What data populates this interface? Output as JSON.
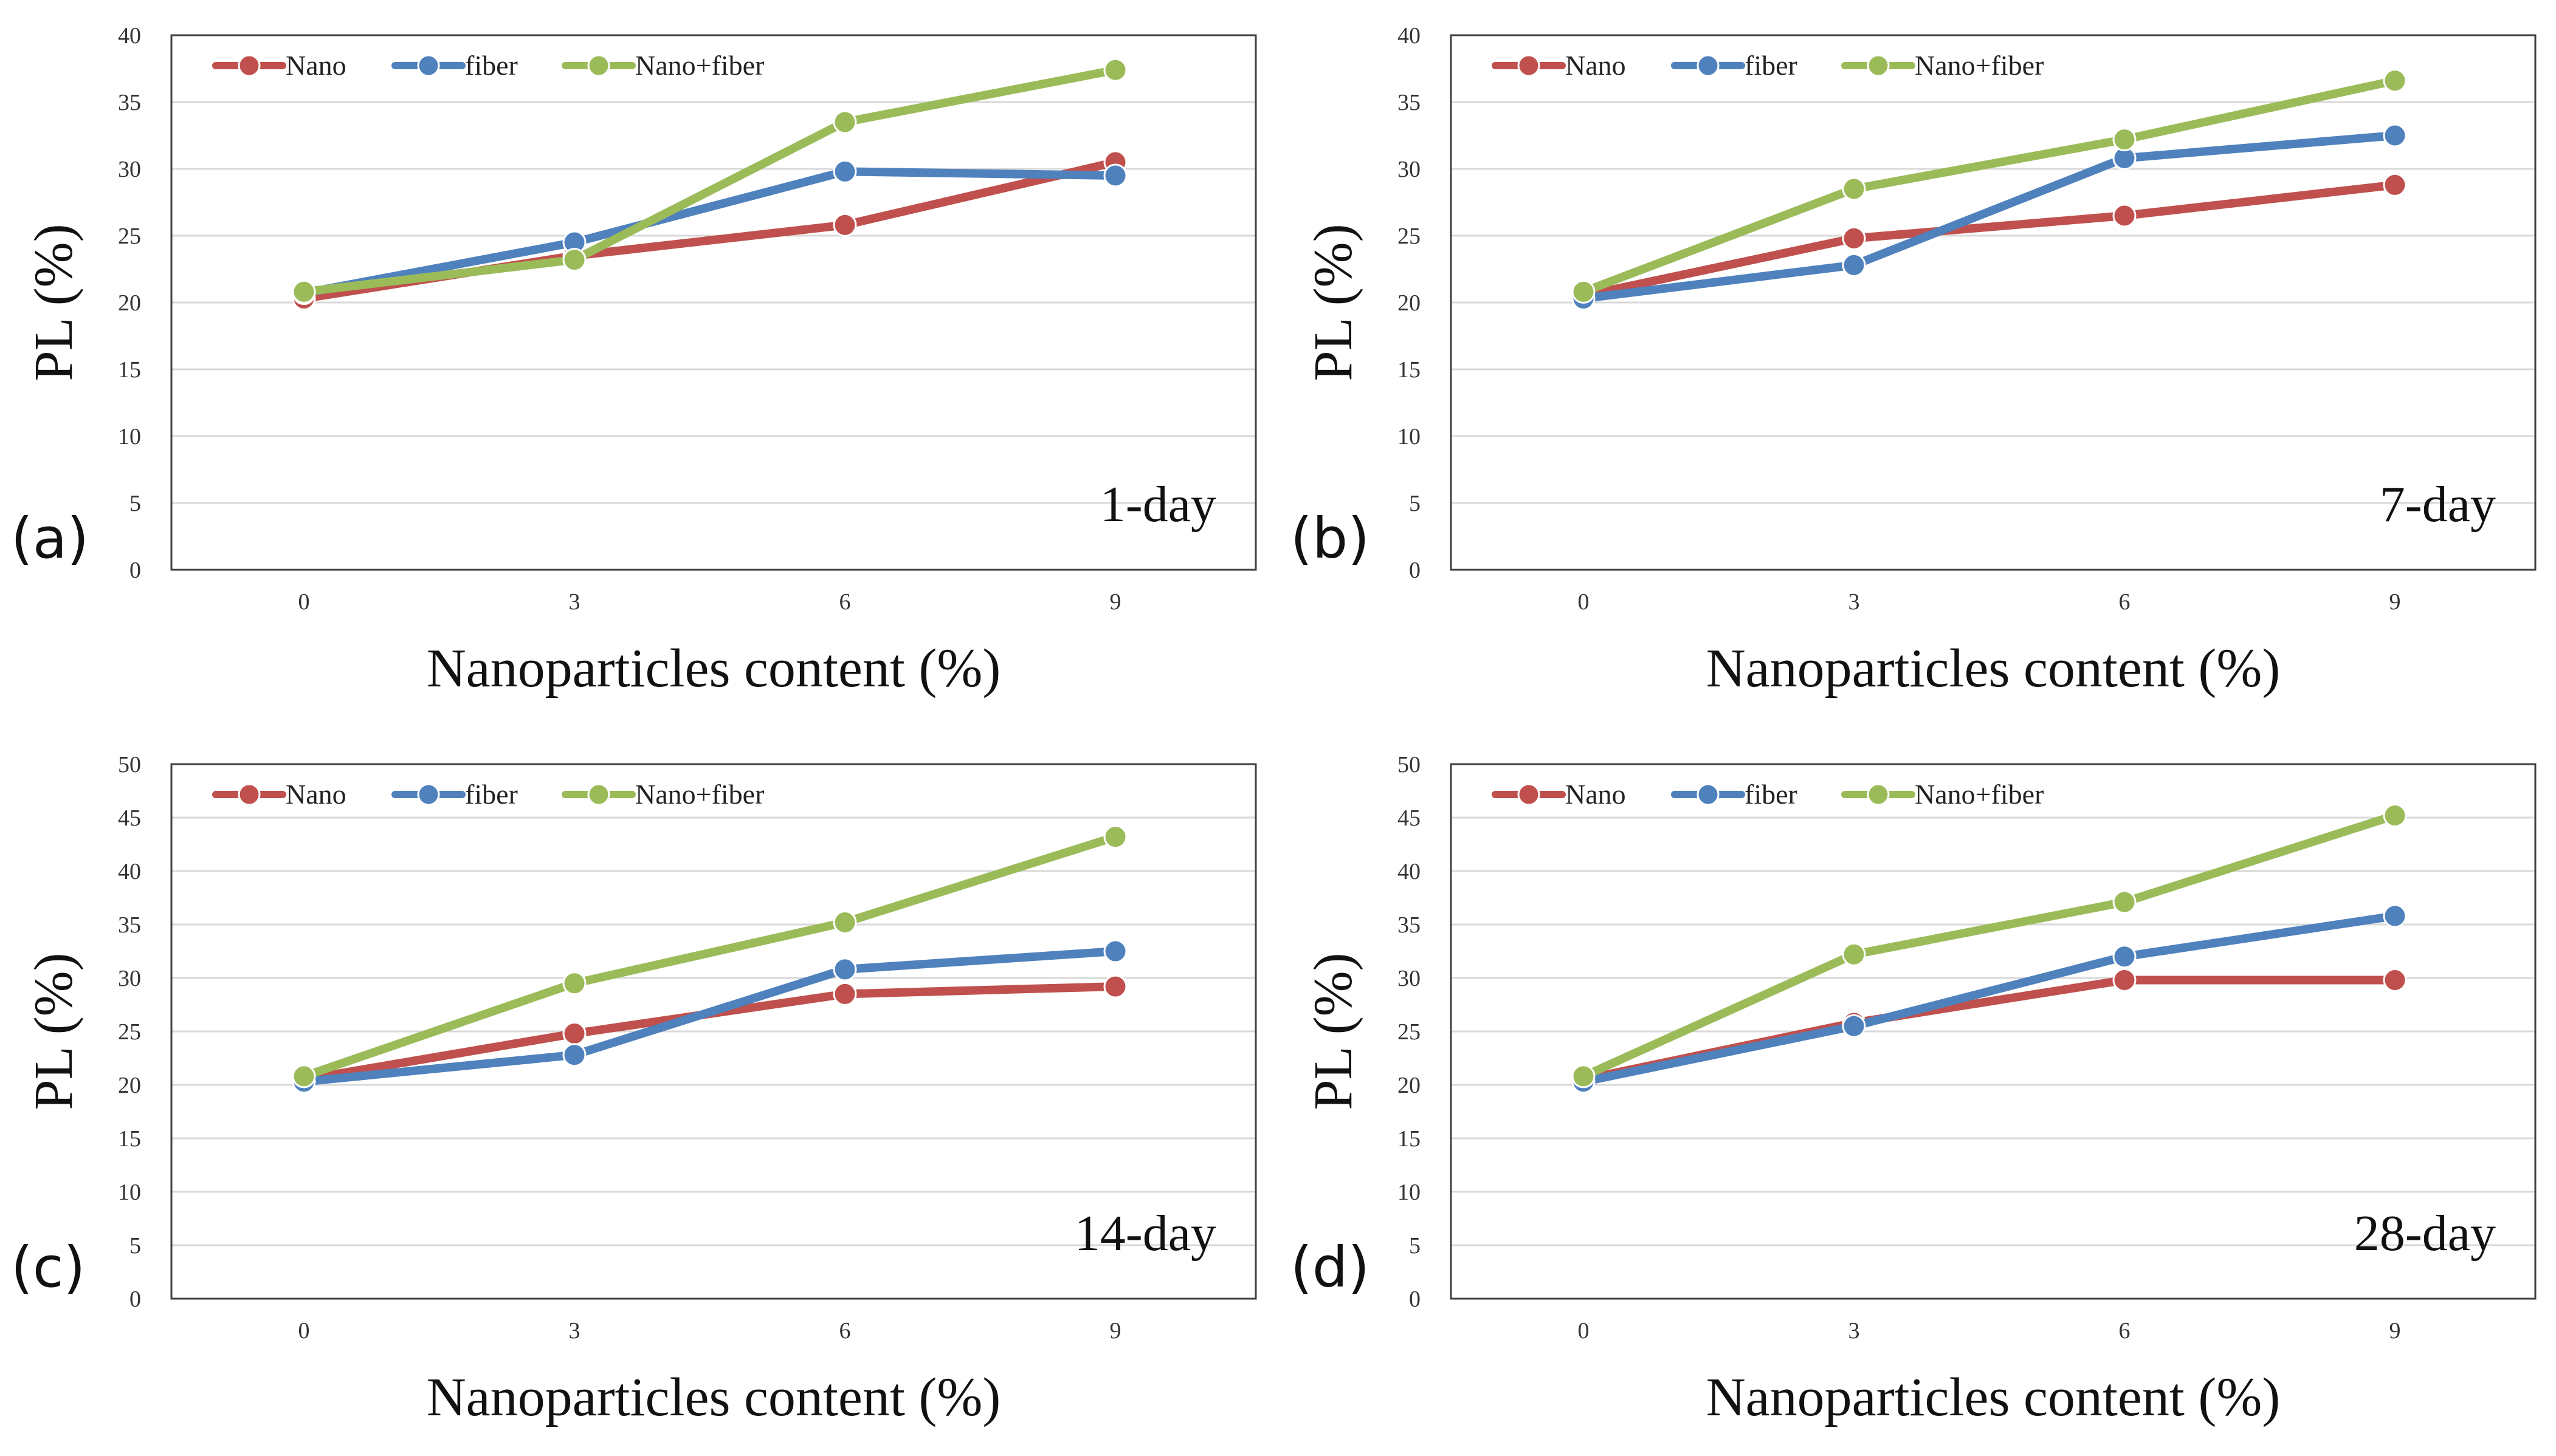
{
  "colors": {
    "Nano": "#c0504d",
    "fiber": "#4f81bd",
    "Nano+fiber": "#9bbb59"
  },
  "chart_data": [
    {
      "type": "line",
      "panel_label": "(a)",
      "day_label": "1-day",
      "xlabel": "Nanoparticles content (%)",
      "ylabel": "PL (%)",
      "categories": [
        "0",
        "3",
        "6",
        "9"
      ],
      "ylim": [
        0,
        40
      ],
      "yticks": [
        "0",
        "5",
        "10",
        "15",
        "20",
        "25",
        "30",
        "35",
        "40"
      ],
      "series": [
        {
          "name": "Nano",
          "values": [
            20.3,
            23.5,
            25.8,
            30.5
          ]
        },
        {
          "name": "fiber",
          "values": [
            20.7,
            24.5,
            29.8,
            29.5
          ]
        },
        {
          "name": "Nano+fiber",
          "values": [
            20.8,
            23.2,
            33.5,
            37.4
          ]
        }
      ]
    },
    {
      "type": "line",
      "panel_label": "(b)",
      "day_label": "7-day",
      "xlabel": "Nanoparticles content (%)",
      "ylabel": "PL (%)",
      "categories": [
        "0",
        "3",
        "6",
        "9"
      ],
      "ylim": [
        0,
        40
      ],
      "yticks": [
        "0",
        "5",
        "10",
        "15",
        "20",
        "25",
        "30",
        "35",
        "40"
      ],
      "series": [
        {
          "name": "Nano",
          "values": [
            20.5,
            24.8,
            26.5,
            28.8
          ]
        },
        {
          "name": "fiber",
          "values": [
            20.3,
            22.8,
            30.8,
            32.5
          ]
        },
        {
          "name": "Nano+fiber",
          "values": [
            20.8,
            28.5,
            32.2,
            36.6
          ]
        }
      ]
    },
    {
      "type": "line",
      "panel_label": "(c)",
      "day_label": "14-day",
      "xlabel": "Nanoparticles content (%)",
      "ylabel": "PL (%)",
      "categories": [
        "0",
        "3",
        "6",
        "9"
      ],
      "ylim": [
        0,
        50
      ],
      "yticks": [
        "0",
        "5",
        "10",
        "15",
        "20",
        "25",
        "30",
        "35",
        "40",
        "45",
        "50"
      ],
      "series": [
        {
          "name": "Nano",
          "values": [
            20.5,
            24.8,
            28.5,
            29.2
          ]
        },
        {
          "name": "fiber",
          "values": [
            20.3,
            22.8,
            30.8,
            32.5
          ]
        },
        {
          "name": "Nano+fiber",
          "values": [
            20.8,
            29.5,
            35.2,
            43.2
          ]
        }
      ]
    },
    {
      "type": "line",
      "panel_label": "(d)",
      "day_label": "28-day",
      "xlabel": "Nanoparticles content (%)",
      "ylabel": "PL (%)",
      "categories": [
        "0",
        "3",
        "6",
        "9"
      ],
      "ylim": [
        0,
        50
      ],
      "yticks": [
        "0",
        "5",
        "10",
        "15",
        "20",
        "25",
        "30",
        "35",
        "40",
        "45",
        "50"
      ],
      "series": [
        {
          "name": "Nano",
          "values": [
            20.5,
            25.8,
            29.8,
            29.8
          ]
        },
        {
          "name": "fiber",
          "values": [
            20.3,
            25.5,
            32.0,
            35.8
          ]
        },
        {
          "name": "Nano+fiber",
          "values": [
            20.8,
            32.2,
            37.1,
            45.2
          ]
        }
      ]
    }
  ]
}
